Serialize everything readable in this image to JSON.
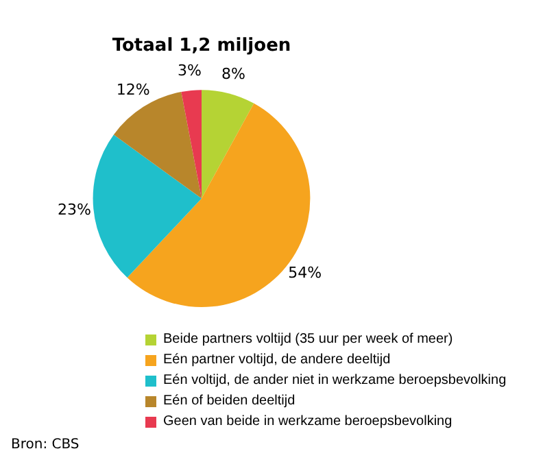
{
  "chart_data": {
    "type": "pie",
    "title": "Totaal 1,2 miljoen",
    "categories": [
      "Beide partners voltijd (35 uur per week of meer)",
      "Eén partner voltijd, de andere deeltijd",
      "Eén voltijd, de ander niet in werkzame beroepsbevolking",
      "Eén of beiden deeltijd",
      "Geen van beide in werkzame beroepsbevolking"
    ],
    "values": [
      8,
      54,
      23,
      12,
      3
    ],
    "value_labels": [
      "8%",
      "54%",
      "23%",
      "12%",
      "3%"
    ],
    "colors": [
      "#b5d334",
      "#f6a41e",
      "#1fbfcb",
      "#b8862b",
      "#e83a50"
    ],
    "legend": "bottom",
    "annotations": [
      "Bron: CBS"
    ]
  }
}
